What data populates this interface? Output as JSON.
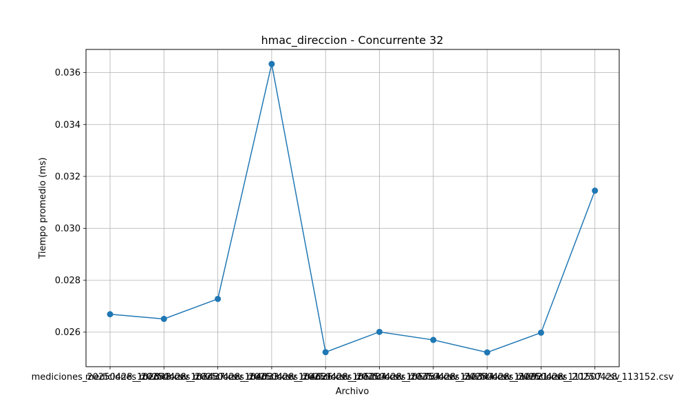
{
  "chart_data": {
    "type": "line",
    "title": "hmac_direccion - Concurrente 32",
    "xlabel": "Archivo",
    "ylabel": "Tiempo promedio (ms)",
    "categories": [
      "mediciones_20250428_102848.csv",
      "mediciones_20250428_103437.csv",
      "mediciones_20250428_104033.csv",
      "mediciones_20250428_104626.csv",
      "mediciones_20250428_105204.csv",
      "mediciones_20250428_105754.csv",
      "mediciones_20250428_110344.csv",
      "mediciones_20250428_110921.csv",
      "mediciones_20250428_111507.csv",
      "mediciones_20250428_113152.csv"
    ],
    "values": [
      0.02669,
      0.02651,
      0.02728,
      0.03633,
      0.02523,
      0.02601,
      0.0257,
      0.02522,
      0.02598,
      0.03145
    ],
    "yticks": [
      "0.026",
      "0.028",
      "0.030",
      "0.032",
      "0.034",
      "0.036"
    ],
    "ylim": [
      0.02467,
      0.03689
    ],
    "grid": true,
    "color": "#1f77b4"
  }
}
